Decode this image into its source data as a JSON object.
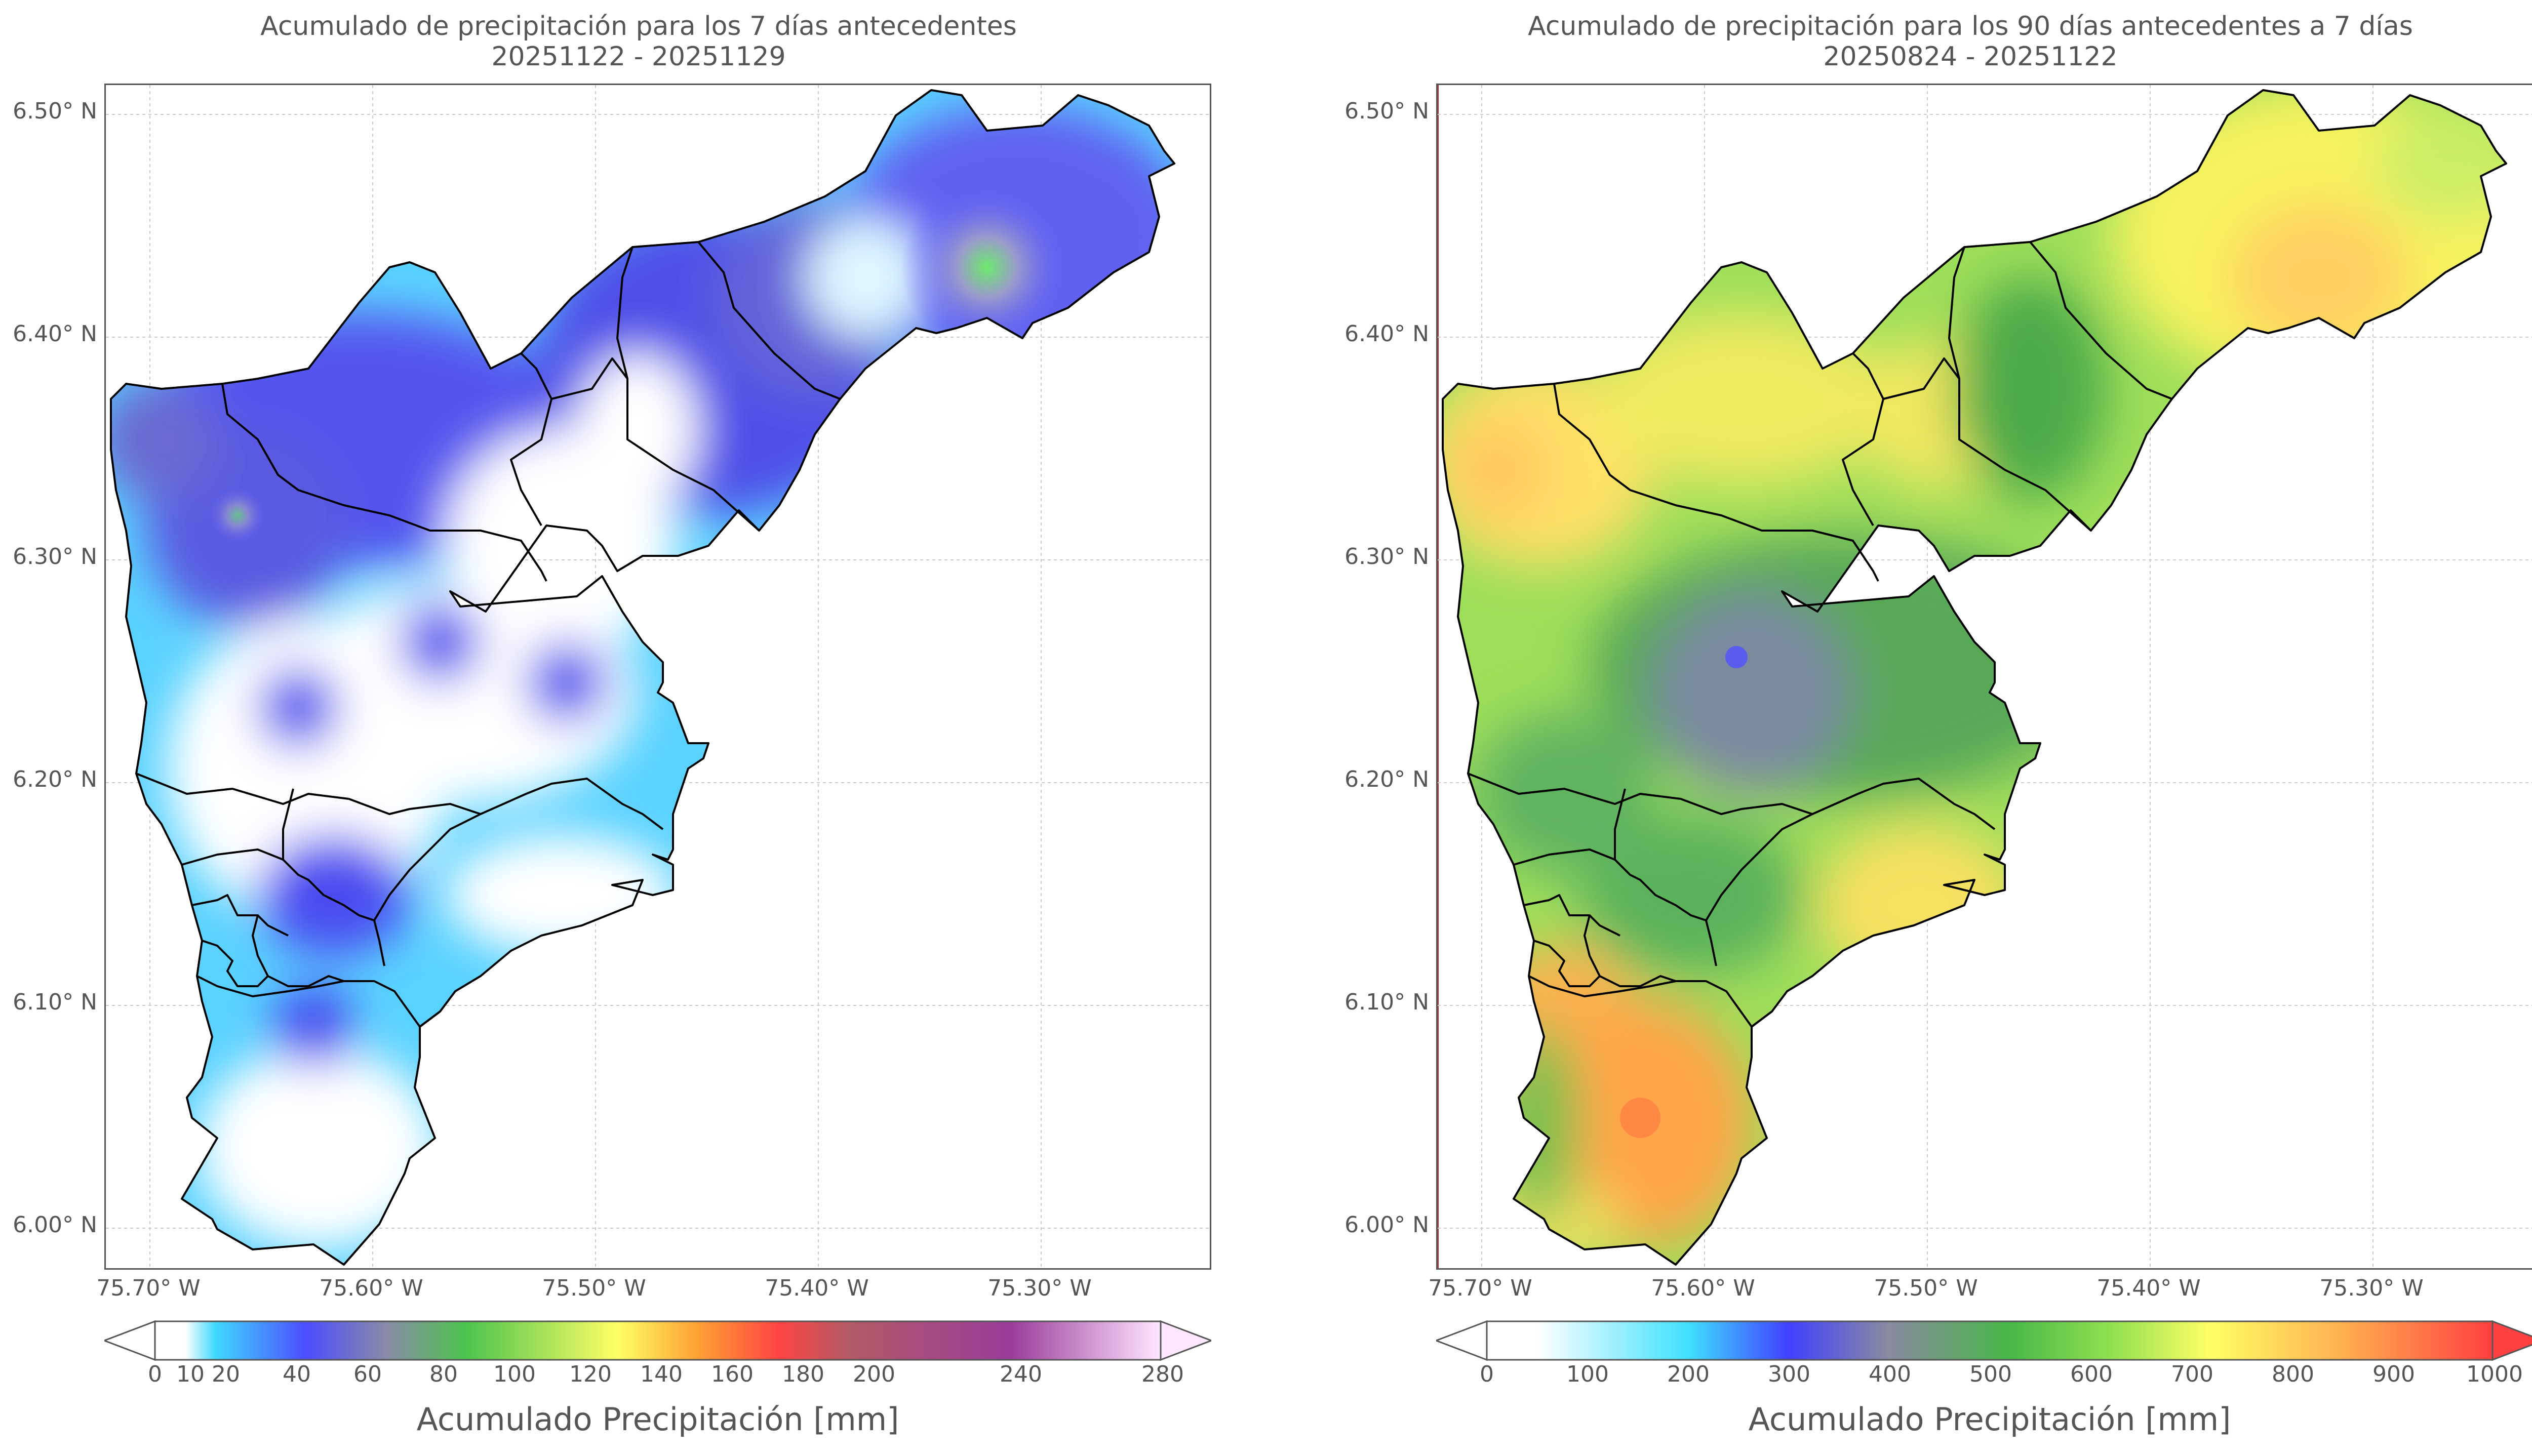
{
  "left": {
    "title_line1": "Acumulado de precipitación para los 7 días antecedentes",
    "title_line2": "20251122 - 20251129",
    "y_ticks": [
      "6.50° N",
      "6.40° N",
      "6.30° N",
      "6.20° N",
      "6.10° N",
      "6.00° N"
    ],
    "x_ticks": [
      "75.70° W",
      "75.60° W",
      "75.50° W",
      "75.40° W",
      "75.30° W"
    ],
    "colorbar_ticks": [
      "0",
      "10",
      "20",
      "40",
      "60",
      "80",
      "100",
      "120",
      "140",
      "160",
      "180",
      "200",
      "240",
      "280"
    ],
    "colorbar_label": "Acumulado Precipitación [mm]",
    "colorbar_colors": [
      "#ffffff",
      "#3fd8ff",
      "#4d4dff",
      "#8a8aa8",
      "#4cc44c",
      "#ffff66",
      "#ffa033",
      "#ff4444",
      "#b25a66",
      "#9a3c9a",
      "#ffe6ff"
    ]
  },
  "right": {
    "title_line1": "Acumulado de precipitación para los 90 días antecedentes a 7 días",
    "title_line2": "20250824 - 20251122",
    "y_ticks": [
      "6.50° N",
      "6.40° N",
      "6.30° N",
      "6.20° N",
      "6.10° N",
      "6.00° N"
    ],
    "x_ticks": [
      "75.70° W",
      "75.60° W",
      "75.50° W",
      "75.40° W",
      "75.30° W"
    ],
    "colorbar_ticks": [
      "0",
      "100",
      "200",
      "300",
      "400",
      "500",
      "600",
      "700",
      "800",
      "900",
      "1000"
    ],
    "colorbar_label": "Acumulado Precipitación [mm]",
    "colorbar_colors": [
      "#ffffff",
      "#40e0ff",
      "#4040ff",
      "#8a8aa0",
      "#48b848",
      "#90e050",
      "#ffff66",
      "#ffb050",
      "#ff4040"
    ]
  }
}
